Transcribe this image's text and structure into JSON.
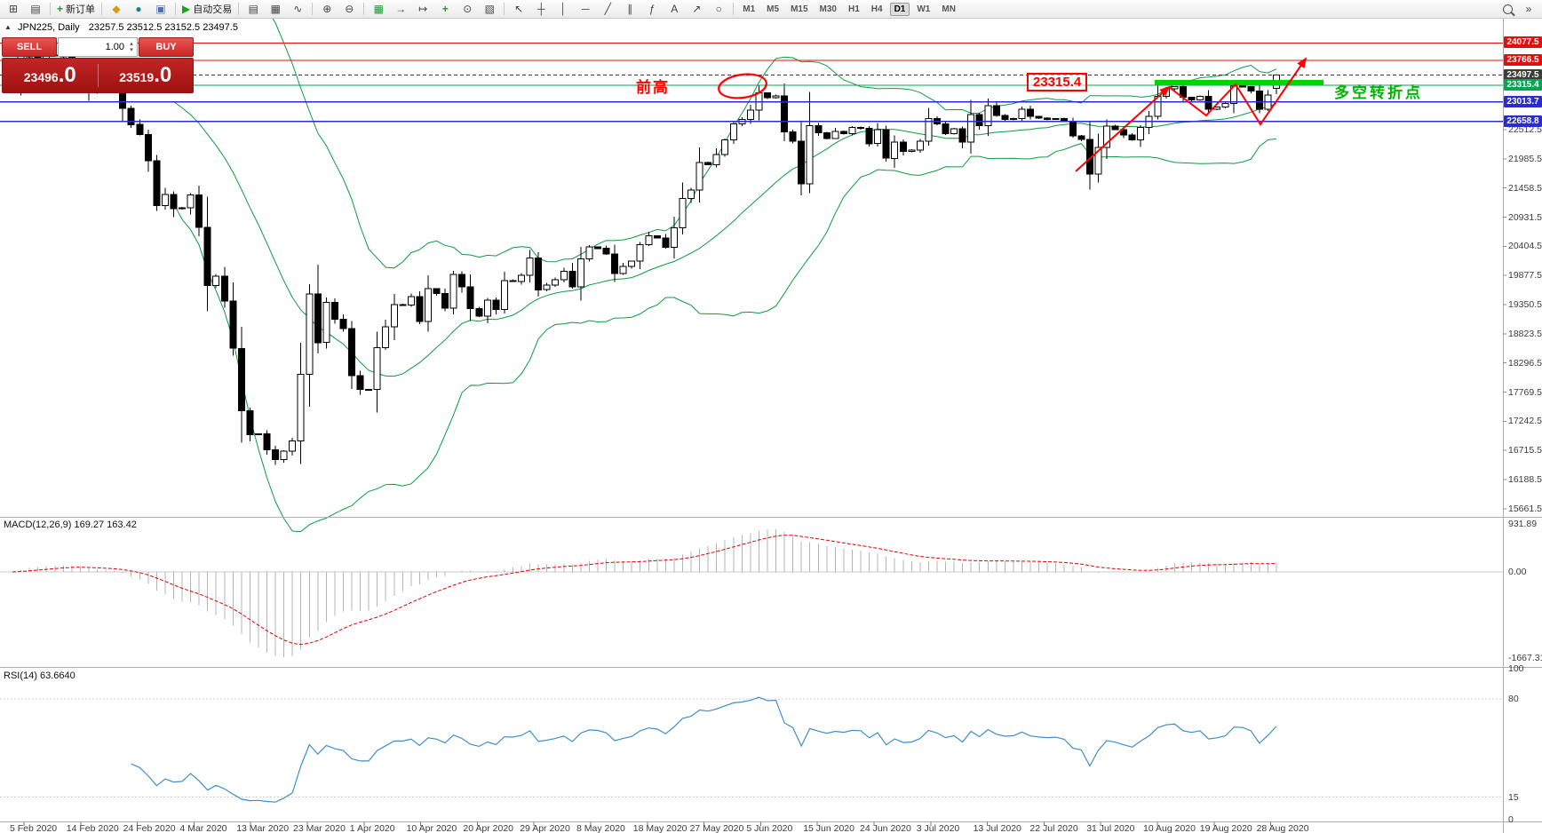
{
  "toolbar": {
    "groups": [
      {
        "name": "windows",
        "items": [
          {
            "name": "new-chart",
            "glyph": "⊞"
          },
          {
            "name": "profiles",
            "glyph": "▤"
          }
        ]
      },
      {
        "name": "order",
        "items": [
          {
            "name": "new-order",
            "glyph": "+",
            "glyph_color": "#1b9e2f",
            "label": "新订单"
          }
        ]
      },
      {
        "name": "panels",
        "items": [
          {
            "name": "market-watch",
            "glyph": "◆",
            "glyph_color": "#d79b16"
          },
          {
            "name": "navigator",
            "glyph": "●",
            "glyph_color": "#1b7f8e"
          },
          {
            "name": "terminal",
            "glyph": "▣",
            "glyph_color": "#4a6fb5"
          }
        ]
      },
      {
        "name": "autotrading",
        "items": [
          {
            "name": "autotrading",
            "glyph": "▶",
            "glyph_color": "#19a519",
            "label": "自动交易"
          }
        ]
      },
      {
        "name": "chart-types",
        "items": [
          {
            "name": "bar-chart-mode",
            "glyph": "▤"
          },
          {
            "name": "candlestick-mode",
            "glyph": "▦"
          },
          {
            "name": "line-chart-mode",
            "glyph": "∿"
          }
        ]
      },
      {
        "name": "zoom",
        "items": [
          {
            "name": "zoom-in",
            "glyph": "⊕"
          },
          {
            "name": "zoom-out",
            "glyph": "⊖"
          }
        ]
      },
      {
        "name": "chart-tools",
        "items": [
          {
            "name": "grid",
            "glyph": "▦",
            "glyph_color": "#1b9e2f"
          },
          {
            "name": "auto-scroll",
            "glyph": "→"
          },
          {
            "name": "chart-shift",
            "glyph": "↦"
          },
          {
            "name": "indicators",
            "glyph": "+",
            "glyph_color": "#1b9e2f"
          },
          {
            "name": "periods",
            "glyph": "⊙"
          },
          {
            "name": "templates",
            "glyph": "▧"
          }
        ]
      },
      {
        "name": "drawing-tools",
        "items": [
          {
            "name": "cursor",
            "glyph": "↖"
          },
          {
            "name": "crosshair",
            "glyph": "┼"
          },
          {
            "name": "vertical-line",
            "glyph": "│"
          },
          {
            "name": "horizontal-line",
            "glyph": "─"
          },
          {
            "name": "trendline",
            "glyph": "╱"
          },
          {
            "name": "channel",
            "glyph": "∥"
          },
          {
            "name": "fibonacci",
            "glyph": "ƒ"
          },
          {
            "name": "text-tool",
            "glyph": "A"
          },
          {
            "name": "arrows-tool",
            "glyph": "↗"
          },
          {
            "name": "shapes",
            "glyph": "○"
          }
        ]
      }
    ],
    "timeframes": [
      "M1",
      "M5",
      "M15",
      "M30",
      "H1",
      "H4",
      "D1",
      "W1",
      "MN"
    ],
    "active_timeframe": "D1",
    "right_items": [
      {
        "name": "search",
        "glyph": ""
      },
      {
        "name": "overflow",
        "glyph": "»"
      }
    ]
  },
  "chart": {
    "symbol_title": "JPN225, Daily",
    "ohlc_text": "23257.5 23512.5 23152.5 23497.5"
  },
  "one_click": {
    "toggle_glyph": "▲",
    "sell_label": "SELL",
    "buy_label": "BUY",
    "volume": "1.00",
    "spin_up": "▴",
    "spin_down": "▾",
    "sell_price_main": "23496",
    "sell_price_big": ".0",
    "buy_price_main": "23519",
    "buy_price_big": ".0"
  },
  "annotations": {
    "prev_high": "前高",
    "price_box": "23315.4",
    "turning_point": "多空转折点"
  },
  "indicators": {
    "macd": {
      "label": "MACD(12,26,9) 169.27 163.42",
      "scale": [
        "931.89",
        "0.00",
        "-1667.31"
      ]
    },
    "rsi": {
      "label": "RSI(14) 63.6640",
      "scale": [
        "100",
        "80",
        "15",
        "0"
      ]
    }
  },
  "price_axis": {
    "ticks": [
      "22512.5",
      "21985.5",
      "21458.5",
      "20931.5",
      "20404.5",
      "19877.5",
      "19350.5",
      "18823.5",
      "18296.5",
      "17769.5",
      "17242.5",
      "16715.5",
      "16188.5",
      "15661.5"
    ],
    "levels": [
      {
        "label": "24077.5",
        "price": 24077.5,
        "color": "#e01010",
        "style": "solid",
        "w": 1
      },
      {
        "label": "23766.5",
        "price": 23766.5,
        "color": "#e01010",
        "style": "solid",
        "w": 1
      },
      {
        "label": "23497.5",
        "price": 23497.5,
        "color": "#3d3d3d",
        "style": "dash",
        "w": 1
      },
      {
        "label": "23315.4",
        "price": 23315.4,
        "color": "#00a650",
        "style": "solid",
        "w": 1
      },
      {
        "label": "23013.7",
        "price": 23013.7,
        "color": "#2b2bd4",
        "style": "solid",
        "w": 1.5
      },
      {
        "label": "22658.8",
        "price": 22658.8,
        "color": "#2b2bd4",
        "style": "solid",
        "w": 1.5
      }
    ]
  },
  "time_axis": {
    "labels": [
      "5 Feb 2020",
      "14 Feb 2020",
      "24 Feb 2020",
      "4 Mar 2020",
      "13 Mar 2020",
      "23 Mar 2020",
      "1 Apr 2020",
      "10 Apr 2020",
      "20 Apr 2020",
      "29 Apr 2020",
      "8 May 2020",
      "18 May 2020",
      "27 May 2020",
      "5 Jun 2020",
      "15 Jun 2020",
      "24 Jun 2020",
      "3 Jul 2020",
      "13 Jul 2020",
      "22 Jul 2020",
      "31 Jul 2020",
      "10 Aug 2020",
      "19 Aug 2020",
      "28 Aug 2020"
    ]
  },
  "colors": {
    "up": "#ffffff",
    "down": "#000000",
    "outline": "#000000",
    "bollinger": "#0e9a40",
    "macd_hist": "#b4b4b4",
    "macd_signal": "#e00000",
    "rsi": "#3f8ecb",
    "annotation_red": "#ff0000",
    "thick_green": "#00d300",
    "separator": "#adadad"
  },
  "chart_data": {
    "type": "candlestick",
    "symbol": "JPN225",
    "period": "Daily",
    "first_open": 23290,
    "last_bar": {
      "open": 23257.5,
      "high": 23512.5,
      "low": 23152.5,
      "close": 23497.5
    },
    "indicators": [
      "Bollinger Bands (20,2)",
      "MACD(12,26,9)",
      "RSI(14)"
    ],
    "closes": [
      23320,
      23874,
      23828,
      23686,
      23860,
      23861,
      23828,
      23688,
      23523,
      23194,
      23401,
      23479,
      23387,
      22900,
      22605,
      22426,
      21948,
      21143,
      21344,
      21083,
      21100,
      21329,
      20750,
      19699,
      19867,
      19416,
      18560,
      17431,
      17002,
      17012,
      16727,
      16553,
      16700,
      16888,
      18092,
      19547,
      18665,
      19389,
      19085,
      18917,
      18065,
      17819,
      17820,
      18576,
      18950,
      19353,
      19346,
      19499,
      19043,
      19639,
      19550,
      19290,
      19897,
      19669,
      19281,
      19138,
      19429,
      19262,
      19783,
      19771,
      19880,
      20194,
      19619,
      19700,
      19800,
      19950,
      19675,
      20179,
      20391,
      20366,
      20267,
      19915,
      20037,
      20134,
      20433,
      20595,
      20552,
      20388,
      20742,
      21271,
      21419,
      21916,
      21878,
      22062,
      22326,
      22614,
      22696,
      22864,
      23178,
      23091,
      23125,
      22473,
      22305,
      21531,
      22582,
      22456,
      22355,
      22479,
      22437,
      22549,
      22534,
      22260,
      22512,
      21995,
      22288,
      22122,
      22146,
      22306,
      22714,
      22615,
      22439,
      22529,
      22291,
      22785,
      22587,
      22946,
      22770,
      22696,
      22717,
      22884,
      22752,
      22720,
      22700,
      22716,
      22657,
      22397,
      22339,
      21710,
      22195,
      22574,
      22515,
      22418,
      22330,
      22550,
      22750,
      23111,
      23250,
      23289,
      23097,
      23051,
      23111,
      22881,
      22920,
      22986,
      23297,
      23291,
      23209,
      22883,
      23140,
      23497.5
    ]
  }
}
